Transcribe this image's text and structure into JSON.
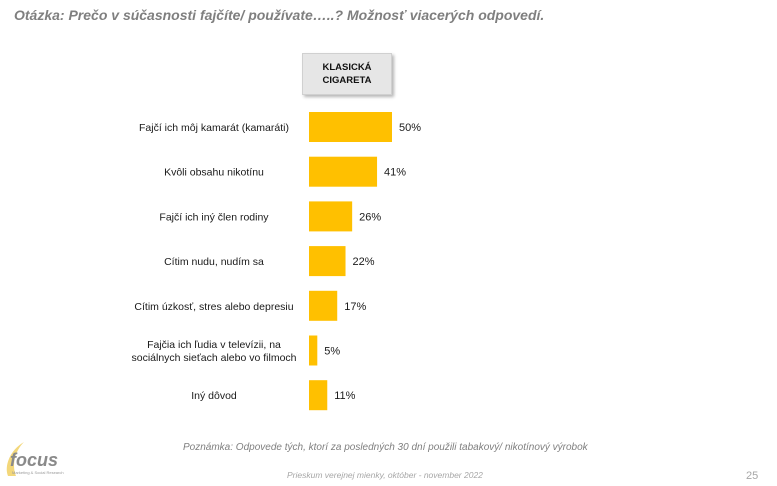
{
  "question": "Otázka: Prečo v súčasnosti fajčíte/ používate…..? Možnosť viacerých odpovedí.",
  "series_header": "KLASICKÁ\nCIGARETA",
  "note": "Poznámka: Odpovede tých, ktorí za posledných 30 dní použili tabakový/ nikotínový výrobok",
  "footer": "Prieskum verejnej mienky, október - november 2022",
  "page_number": "25",
  "logo": {
    "text": "focus",
    "subtext": "Marketing & Social Research"
  },
  "colors": {
    "bar": "#FFC000",
    "text": "#1a1a1a",
    "muted": "#7f7f7f"
  },
  "chart_data": {
    "type": "bar",
    "orientation": "horizontal",
    "categories": [
      "Fajčí ich môj kamarát (kamaráti)",
      "Kvôli obsahu nikotínu",
      "Fajčí ich iný člen rodiny",
      "Cítim nudu, nudím sa",
      "Cítim úzkosť, stres alebo depresiu",
      "Fajčia ich ľudia v televízii, na sociálnych sieťach alebo vo filmoch",
      "Iný dôvod"
    ],
    "category_lines": [
      [
        "Fajčí ich môj kamarát (kamaráti)"
      ],
      [
        "Kvôli obsahu nikotínu"
      ],
      [
        "Fajčí ich iný člen rodiny"
      ],
      [
        "Cítim nudu, nudím sa"
      ],
      [
        "Cítim úzkosť, stres alebo depresiu"
      ],
      [
        "Fajčia ich ľudia v televízii, na",
        "sociálnych sieťach alebo vo filmoch"
      ],
      [
        "Iný dôvod"
      ]
    ],
    "series": [
      {
        "name": "KLASICKÁ CIGARETA",
        "values": [
          50,
          41,
          26,
          22,
          17,
          5,
          11
        ]
      }
    ],
    "value_labels": [
      "50%",
      "41%",
      "26%",
      "22%",
      "17%",
      "5%",
      "11%"
    ],
    "unit": "%",
    "xlim": [
      0,
      100
    ],
    "grid": false,
    "legend": "none"
  }
}
